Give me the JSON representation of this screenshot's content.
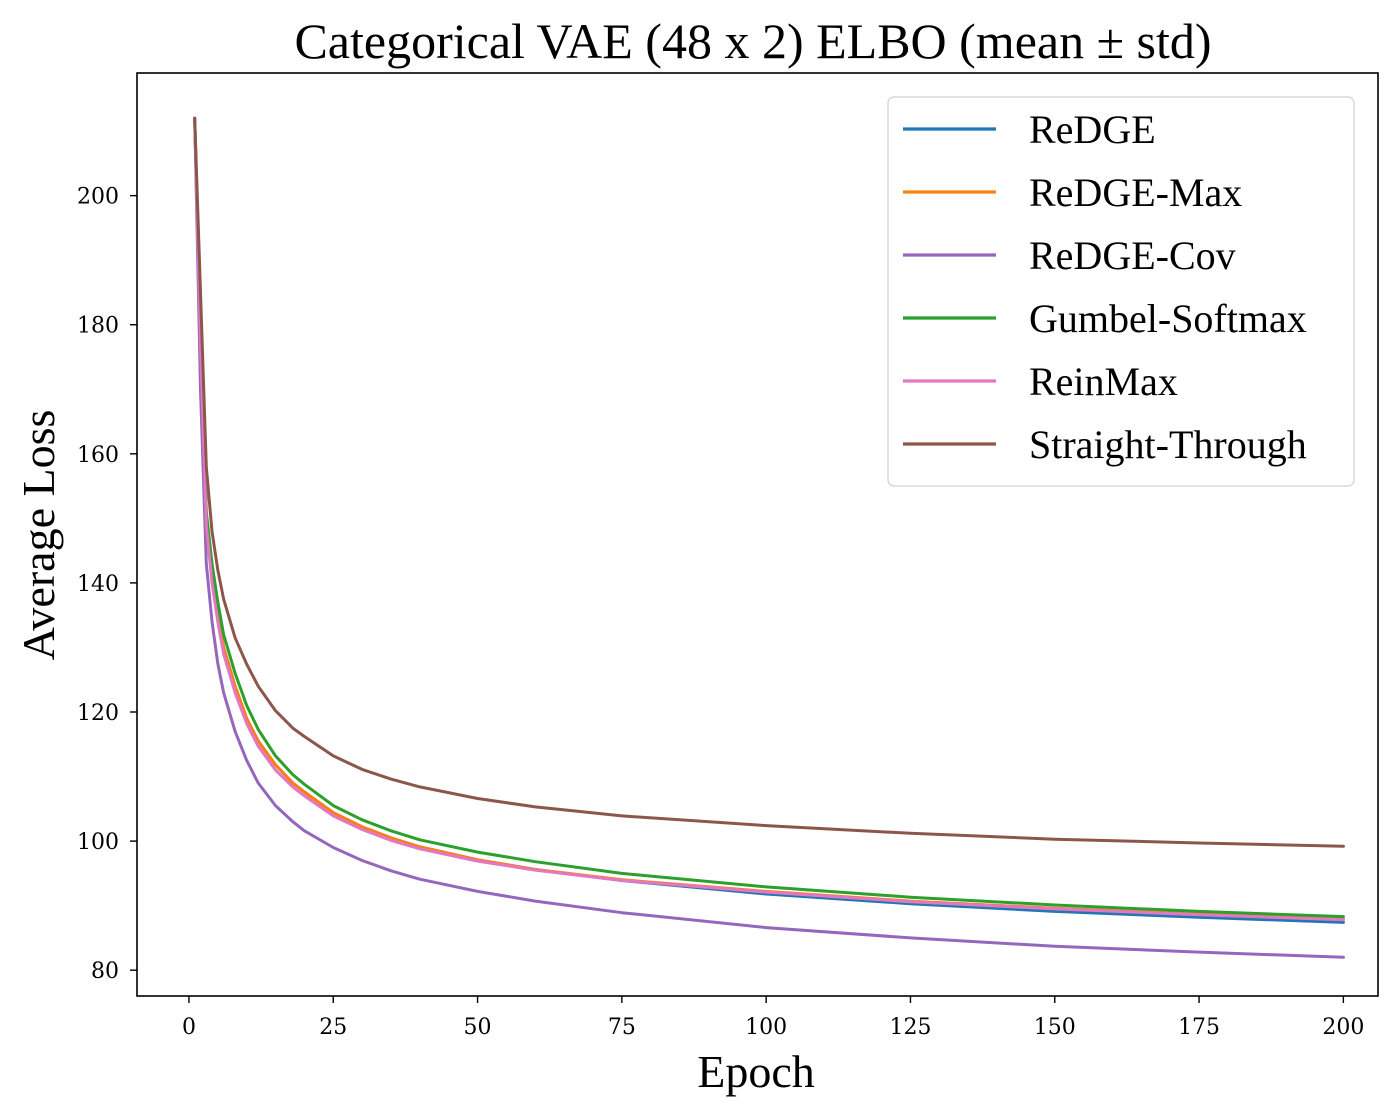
{
  "chart_data": {
    "type": "line",
    "title": "Categorical VAE (48 x 2) ELBO (mean ± std)",
    "xlabel": "Epoch",
    "ylabel": "Average Loss",
    "xlim": [
      -9,
      206
    ],
    "ylim": [
      76,
      219
    ],
    "xticks": [
      0,
      25,
      50,
      75,
      100,
      125,
      150,
      175,
      200
    ],
    "yticks": [
      80,
      100,
      120,
      140,
      160,
      180,
      200
    ],
    "grid": false,
    "legend_position": "top-right",
    "x": [
      1,
      2,
      3,
      4,
      5,
      6,
      8,
      10,
      12,
      15,
      18,
      20,
      25,
      30,
      35,
      40,
      50,
      60,
      75,
      100,
      125,
      150,
      175,
      200
    ],
    "series": [
      {
        "name": "ReDGE",
        "color": "#1f77b4",
        "values": [
          212,
          178,
          150,
          141,
          135,
          130,
          124,
          119,
          115.5,
          111.8,
          109,
          107.6,
          104.4,
          102.2,
          100.5,
          99.1,
          97.1,
          95.6,
          93.9,
          91.8,
          90.3,
          89.1,
          88.2,
          87.4
        ]
      },
      {
        "name": "ReDGE-Max",
        "color": "#ff7f0e",
        "values": [
          212,
          178,
          150,
          141,
          135,
          130,
          124,
          119,
          115.5,
          111.8,
          109,
          107.6,
          104.4,
          102.2,
          100.5,
          99.1,
          97.1,
          95.6,
          94.0,
          92.2,
          90.7,
          89.6,
          88.7,
          87.9
        ]
      },
      {
        "name": "ReDGE-Cov",
        "color": "#9467bd",
        "values": [
          212,
          170,
          143,
          134,
          127.5,
          123,
          117,
          112.5,
          109,
          105.5,
          103,
          101.6,
          99,
          97,
          95.4,
          94.1,
          92.2,
          90.7,
          88.9,
          86.6,
          85,
          83.7,
          82.8,
          82.0
        ]
      },
      {
        "name": "Gumbel-Softmax",
        "color": "#2ca02c",
        "values": [
          212,
          178,
          151,
          143,
          137,
          132,
          126,
          121,
          117.3,
          113.2,
          110.3,
          108.8,
          105.5,
          103.3,
          101.6,
          100.2,
          98.3,
          96.8,
          95.0,
          92.9,
          91.3,
          90.1,
          89.1,
          88.3
        ]
      },
      {
        "name": "ReinMax",
        "color": "#e377c2",
        "values": [
          212,
          177,
          149,
          140,
          134,
          129,
          123,
          118.2,
          114.7,
          111,
          108.4,
          107,
          103.9,
          101.8,
          100.1,
          98.8,
          96.9,
          95.5,
          93.9,
          92.1,
          90.6,
          89.5,
          88.6,
          87.8
        ]
      },
      {
        "name": "Straight-Through",
        "color": "#8c564b",
        "values": [
          212,
          185,
          158,
          148,
          142,
          137.5,
          131.5,
          127.4,
          124,
          120.2,
          117.5,
          116.2,
          113.2,
          111.1,
          109.6,
          108.4,
          106.6,
          105.3,
          103.9,
          102.4,
          101.2,
          100.3,
          99.7,
          99.2
        ]
      }
    ]
  }
}
